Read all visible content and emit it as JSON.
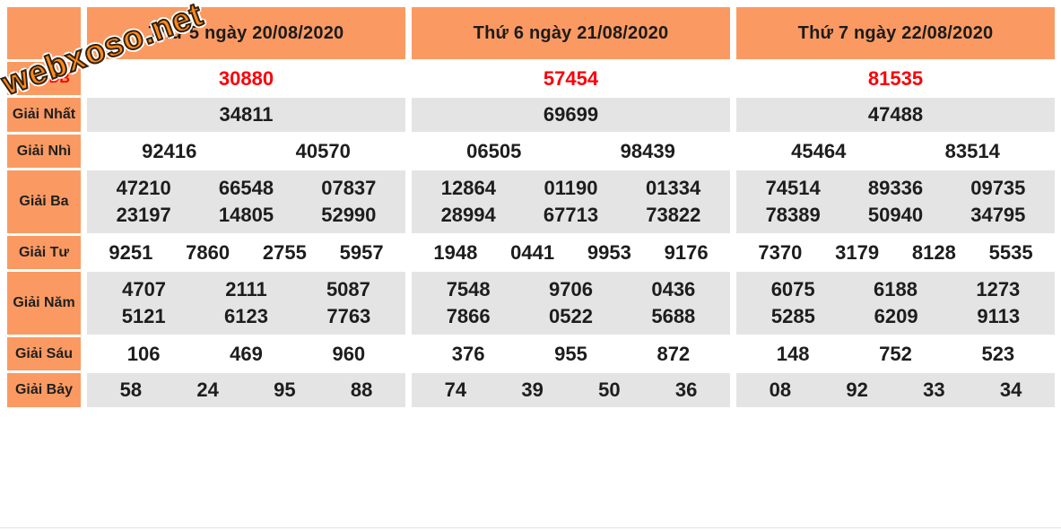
{
  "watermark": {
    "text": "webxoso.net"
  },
  "colors": {
    "header_bg": "#fa9a62",
    "label_bg": "#fa9a62",
    "alt_row_bg": "#e4e4e4",
    "special_prize_red": "#fb0009",
    "watermark_orange": "#ff8a1e",
    "text": "#1d1d1d"
  },
  "table": {
    "row_labels": [
      "Giải ĐB",
      "Giải Nhất",
      "Giải Nhì",
      "Giải Ba",
      "Giải Tư",
      "Giải Năm",
      "Giải Sáu",
      "Giải Bảy"
    ],
    "columns": [
      {
        "date": "Thứ 5 ngày 20/08/2020",
        "db": "30880",
        "nhat": "34811",
        "nhi": [
          "92416",
          "40570"
        ],
        "ba": [
          "47210",
          "66548",
          "07837",
          "23197",
          "14805",
          "52990"
        ],
        "tu": [
          "9251",
          "7860",
          "2755",
          "5957"
        ],
        "nam": [
          "4707",
          "2111",
          "5087",
          "5121",
          "6123",
          "7763"
        ],
        "sau": [
          "106",
          "469",
          "960"
        ],
        "bay": [
          "58",
          "24",
          "95",
          "88"
        ]
      },
      {
        "date": "Thứ 6 ngày 21/08/2020",
        "db": "57454",
        "nhat": "69699",
        "nhi": [
          "06505",
          "98439"
        ],
        "ba": [
          "12864",
          "01190",
          "01334",
          "28994",
          "67713",
          "73822"
        ],
        "tu": [
          "1948",
          "0441",
          "9953",
          "9176"
        ],
        "nam": [
          "7548",
          "9706",
          "0436",
          "7866",
          "0522",
          "5688"
        ],
        "sau": [
          "376",
          "955",
          "872"
        ],
        "bay": [
          "74",
          "39",
          "50",
          "36"
        ]
      },
      {
        "date": "Thứ 7 ngày 22/08/2020",
        "db": "81535",
        "nhat": "47488",
        "nhi": [
          "45464",
          "83514"
        ],
        "ba": [
          "74514",
          "89336",
          "09735",
          "78389",
          "50940",
          "34795"
        ],
        "tu": [
          "7370",
          "3179",
          "8128",
          "5535"
        ],
        "nam": [
          "6075",
          "6188",
          "1273",
          "5285",
          "6209",
          "9113"
        ],
        "sau": [
          "148",
          "752",
          "523"
        ],
        "bay": [
          "08",
          "92",
          "33",
          "34"
        ]
      }
    ]
  }
}
